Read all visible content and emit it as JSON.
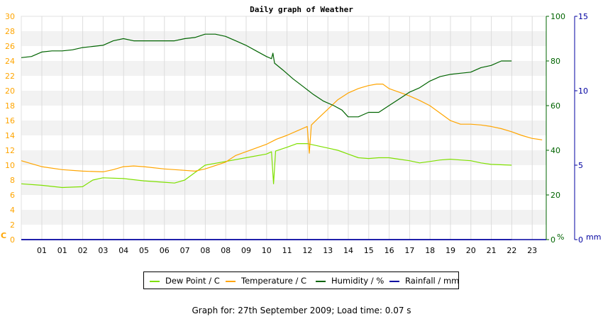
{
  "chart_data": {
    "type": "line",
    "title": "Daily graph of Weather",
    "x_tick_labels": [
      "01",
      "01",
      "02",
      "03",
      "04",
      "05",
      "06",
      "07",
      "08",
      "08",
      "09",
      "10",
      "11",
      "12",
      "13",
      "14",
      "15",
      "16",
      "17",
      "18",
      "19",
      "20",
      "21",
      "22",
      "23"
    ],
    "x_range_hours": [
      0,
      24
    ],
    "axes": {
      "left": {
        "unit": "C",
        "ticks": [
          0,
          2,
          4,
          6,
          8,
          10,
          12,
          14,
          16,
          18,
          20,
          22,
          24,
          26,
          28,
          30
        ],
        "range": [
          0,
          30
        ],
        "color": "#ffa500"
      },
      "right1": {
        "unit": "%",
        "ticks": [
          0,
          20,
          40,
          60,
          80,
          100
        ],
        "range": [
          0,
          100
        ],
        "color": "#006400"
      },
      "right2": {
        "unit": "mm",
        "ticks": [
          0,
          5,
          10,
          15
        ],
        "range": [
          0,
          15
        ],
        "color": "#0000a0"
      }
    },
    "grid": true,
    "legend_position": "bottom",
    "series": [
      {
        "name": "Dew Point / C",
        "axis": "left",
        "color": "#7fe000",
        "points": [
          [
            0,
            7.5
          ],
          [
            1,
            7.3
          ],
          [
            2,
            7.0
          ],
          [
            3,
            7.1
          ],
          [
            3.5,
            8.0
          ],
          [
            4,
            8.3
          ],
          [
            5,
            8.2
          ],
          [
            6,
            7.9
          ],
          [
            7,
            7.7
          ],
          [
            7.5,
            7.6
          ],
          [
            8,
            8.0
          ],
          [
            8.5,
            9.0
          ],
          [
            9,
            10.0
          ],
          [
            10,
            10.5
          ],
          [
            11,
            11.0
          ],
          [
            12,
            11.5
          ],
          [
            12.25,
            11.8
          ],
          [
            12.35,
            7.5
          ],
          [
            12.45,
            11.9
          ],
          [
            13,
            12.4
          ],
          [
            13.5,
            12.9
          ],
          [
            14,
            12.9
          ],
          [
            14.5,
            12.6
          ],
          [
            15,
            12.3
          ],
          [
            15.5,
            12.0
          ],
          [
            16,
            11.5
          ],
          [
            16.5,
            11.0
          ],
          [
            17,
            10.9
          ],
          [
            17.5,
            11.0
          ],
          [
            18,
            11.0
          ],
          [
            18.5,
            10.8
          ],
          [
            19,
            10.6
          ],
          [
            19.5,
            10.3
          ],
          [
            20,
            10.5
          ],
          [
            20.5,
            10.7
          ],
          [
            21,
            10.8
          ],
          [
            21.5,
            10.7
          ],
          [
            22,
            10.6
          ],
          [
            22.5,
            10.3
          ],
          [
            23,
            10.1
          ],
          [
            24,
            10.0
          ]
        ]
      },
      {
        "name": "Temperature / C",
        "axis": "left",
        "color": "#ffa500",
        "points": [
          [
            0,
            10.6
          ],
          [
            0.5,
            10.2
          ],
          [
            1,
            9.8
          ],
          [
            2,
            9.4
          ],
          [
            3,
            9.2
          ],
          [
            4,
            9.1
          ],
          [
            4.5,
            9.4
          ],
          [
            5,
            9.8
          ],
          [
            5.5,
            9.9
          ],
          [
            6,
            9.8
          ],
          [
            7,
            9.5
          ],
          [
            8,
            9.3
          ],
          [
            8.5,
            9.2
          ],
          [
            9,
            9.5
          ],
          [
            10,
            10.4
          ],
          [
            10.5,
            11.3
          ],
          [
            11,
            11.8
          ],
          [
            11.5,
            12.3
          ],
          [
            12,
            12.8
          ],
          [
            12.5,
            13.5
          ],
          [
            13,
            14.0
          ],
          [
            13.5,
            14.6
          ],
          [
            14,
            15.2
          ],
          [
            14.1,
            11.6
          ],
          [
            14.2,
            15.4
          ],
          [
            14.5,
            16.2
          ],
          [
            15,
            17.5
          ],
          [
            15.5,
            18.8
          ],
          [
            16,
            19.7
          ],
          [
            16.5,
            20.3
          ],
          [
            17,
            20.7
          ],
          [
            17.4,
            20.9
          ],
          [
            17.7,
            20.9
          ],
          [
            18,
            20.3
          ],
          [
            18.5,
            19.8
          ],
          [
            19,
            19.3
          ],
          [
            19.5,
            18.7
          ],
          [
            20,
            18.0
          ],
          [
            20.5,
            17.0
          ],
          [
            21,
            16.0
          ],
          [
            21.5,
            15.5
          ],
          [
            22,
            15.5
          ],
          [
            22.5,
            15.4
          ],
          [
            23,
            15.2
          ],
          [
            23.5,
            14.9
          ],
          [
            24,
            14.5
          ],
          [
            24.5,
            14.0
          ],
          [
            25,
            13.6
          ],
          [
            25.5,
            13.4
          ]
        ]
      },
      {
        "name": "Humidity / %",
        "axis": "right1",
        "color": "#006400",
        "points": [
          [
            0,
            81.5
          ],
          [
            0.5,
            82.0
          ],
          [
            1,
            84.0
          ],
          [
            1.5,
            84.5
          ],
          [
            2,
            84.5
          ],
          [
            2.5,
            85.0
          ],
          [
            3,
            86.0
          ],
          [
            3.5,
            86.5
          ],
          [
            4,
            87.0
          ],
          [
            4.5,
            89.0
          ],
          [
            5,
            90.0
          ],
          [
            5.5,
            89.0
          ],
          [
            6,
            89.0
          ],
          [
            6.5,
            89.0
          ],
          [
            7,
            89.0
          ],
          [
            7.5,
            89.0
          ],
          [
            8,
            90.0
          ],
          [
            8.5,
            90.5
          ],
          [
            9,
            92.0
          ],
          [
            9.5,
            92.0
          ],
          [
            10,
            91.0
          ],
          [
            10.5,
            89.0
          ],
          [
            11,
            87.0
          ],
          [
            11.5,
            84.5
          ],
          [
            12,
            82.0
          ],
          [
            12.25,
            81.0
          ],
          [
            12.32,
            83.5
          ],
          [
            12.4,
            79.0
          ],
          [
            12.8,
            76.0
          ],
          [
            13.3,
            72.0
          ],
          [
            13.8,
            68.5
          ],
          [
            14.3,
            65.0
          ],
          [
            14.8,
            62.0
          ],
          [
            15.3,
            60.0
          ],
          [
            15.7,
            58.0
          ],
          [
            16,
            55.0
          ],
          [
            16.5,
            55.0
          ],
          [
            17,
            57.0
          ],
          [
            17.5,
            57.0
          ],
          [
            18,
            60.0
          ],
          [
            18.5,
            63.0
          ],
          [
            19,
            66.0
          ],
          [
            19.5,
            68.0
          ],
          [
            20,
            71.0
          ],
          [
            20.5,
            73.0
          ],
          [
            21,
            74.0
          ],
          [
            21.5,
            74.5
          ],
          [
            22,
            75.0
          ],
          [
            22.5,
            77.0
          ],
          [
            23,
            78.0
          ],
          [
            23.5,
            80.0
          ],
          [
            24,
            80.0
          ]
        ]
      },
      {
        "name": "Rainfall / mm",
        "axis": "right2",
        "color": "#0000a0",
        "points": [
          [
            0,
            0
          ],
          [
            24,
            0
          ]
        ]
      }
    ]
  },
  "legend": [
    {
      "label": "Dew Point / C",
      "color": "#7fe000"
    },
    {
      "label": "Temperature / C",
      "color": "#ffa500"
    },
    {
      "label": "Humidity / %",
      "color": "#006400"
    },
    {
      "label": "Rainfall / mm",
      "color": "#0000a0"
    }
  ],
  "footer": "Graph for: 27th September 2009; Load time: 0.07 s"
}
